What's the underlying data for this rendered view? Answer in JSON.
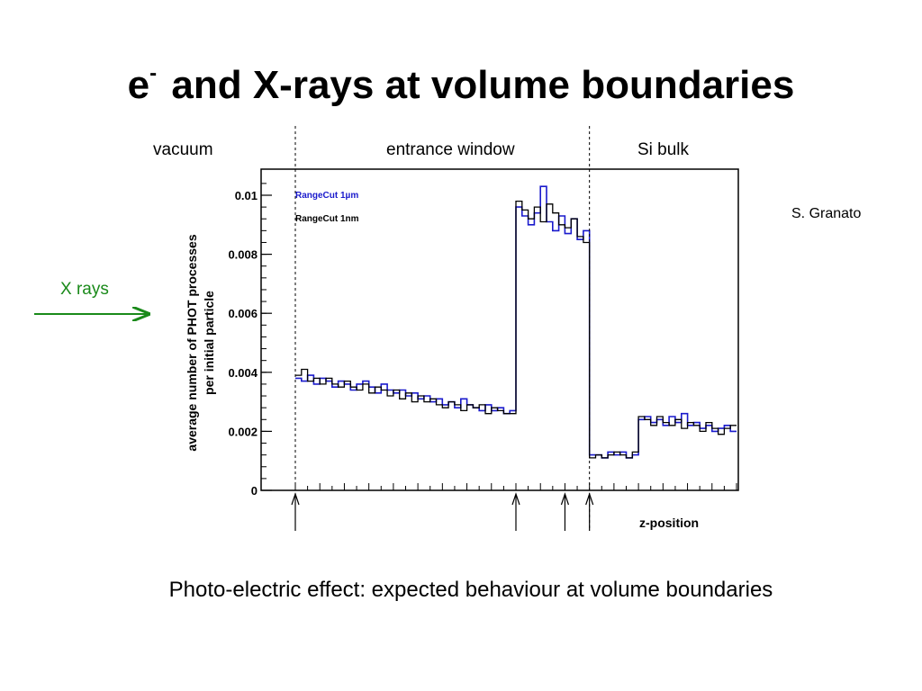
{
  "slide": {
    "title_main": "e",
    "title_sup": "-",
    "title_rest": "and X-rays at volume boundaries",
    "regions": [
      "vacuum",
      "entrance window",
      "Si bulk"
    ],
    "author": "S. Granato",
    "xrays_label": "X rays",
    "caption": "Photo-electric effect: expected behaviour at volume boundaries",
    "arrow_color": "#1a8a1a"
  },
  "chart_data": {
    "type": "line",
    "step": true,
    "title": "",
    "xlabel": "z-position",
    "ylabel": "average number of PHOT processes per initial particle",
    "ylabel_lines": [
      "average number of PHOT processes",
      "per initial particle"
    ],
    "ylim": [
      0,
      0.011
    ],
    "yticks": [
      0,
      0.002,
      0.004,
      0.006,
      0.008,
      0.01
    ],
    "ytick_labels": [
      "0",
      "0.002",
      "0.004",
      "0.006",
      "0.008",
      "0.01"
    ],
    "x_bins": 72,
    "boundary_bins": [
      0,
      36,
      48
    ],
    "marker_bins": [
      0,
      36,
      44,
      48
    ],
    "legend_position": "top-left",
    "colors": {
      "rangecut_1um": "#1a1acc",
      "rangecut_1nm": "#000000"
    },
    "series": [
      {
        "name": "RangeCut 1µm",
        "values": [
          0.0038,
          0.0037,
          0.0039,
          0.0036,
          0.0038,
          0.0037,
          0.0035,
          0.0037,
          0.0036,
          0.0034,
          0.0036,
          0.0037,
          0.0035,
          0.0033,
          0.0036,
          0.0034,
          0.0033,
          0.0034,
          0.0032,
          0.0033,
          0.0031,
          0.0032,
          0.003,
          0.0031,
          0.0029,
          0.003,
          0.0028,
          0.0031,
          0.0029,
          0.0028,
          0.0027,
          0.0029,
          0.0027,
          0.0028,
          0.0026,
          0.0027,
          0.0096,
          0.0093,
          0.009,
          0.0094,
          0.0103,
          0.0091,
          0.0088,
          0.0093,
          0.0087,
          0.0092,
          0.0085,
          0.0088,
          0.0012,
          0.0012,
          0.0011,
          0.0013,
          0.0012,
          0.0013,
          0.0011,
          0.0012,
          0.0024,
          0.0025,
          0.0023,
          0.0024,
          0.0022,
          0.0025,
          0.0023,
          0.0026,
          0.0022,
          0.0023,
          0.0021,
          0.0022,
          0.002,
          0.0021,
          0.0022,
          0.002
        ]
      },
      {
        "name": "RangeCut 1nm",
        "values": [
          0.0039,
          0.0041,
          0.0037,
          0.0038,
          0.0036,
          0.0038,
          0.0036,
          0.0035,
          0.0037,
          0.0035,
          0.0034,
          0.0036,
          0.0033,
          0.0035,
          0.0034,
          0.0032,
          0.0034,
          0.0031,
          0.0033,
          0.003,
          0.0032,
          0.003,
          0.0031,
          0.0029,
          0.0028,
          0.003,
          0.0029,
          0.0027,
          0.0029,
          0.0028,
          0.0029,
          0.0026,
          0.0028,
          0.0027,
          0.0026,
          0.0026,
          0.0098,
          0.0095,
          0.0092,
          0.0096,
          0.0091,
          0.0097,
          0.0094,
          0.009,
          0.0089,
          0.0092,
          0.0086,
          0.0084,
          0.0011,
          0.0012,
          0.0011,
          0.0012,
          0.0013,
          0.0012,
          0.0011,
          0.0013,
          0.0025,
          0.0024,
          0.0022,
          0.0025,
          0.0023,
          0.0022,
          0.0024,
          0.0021,
          0.0023,
          0.0022,
          0.002,
          0.0023,
          0.0021,
          0.0019,
          0.0021,
          0.0022
        ]
      }
    ]
  }
}
